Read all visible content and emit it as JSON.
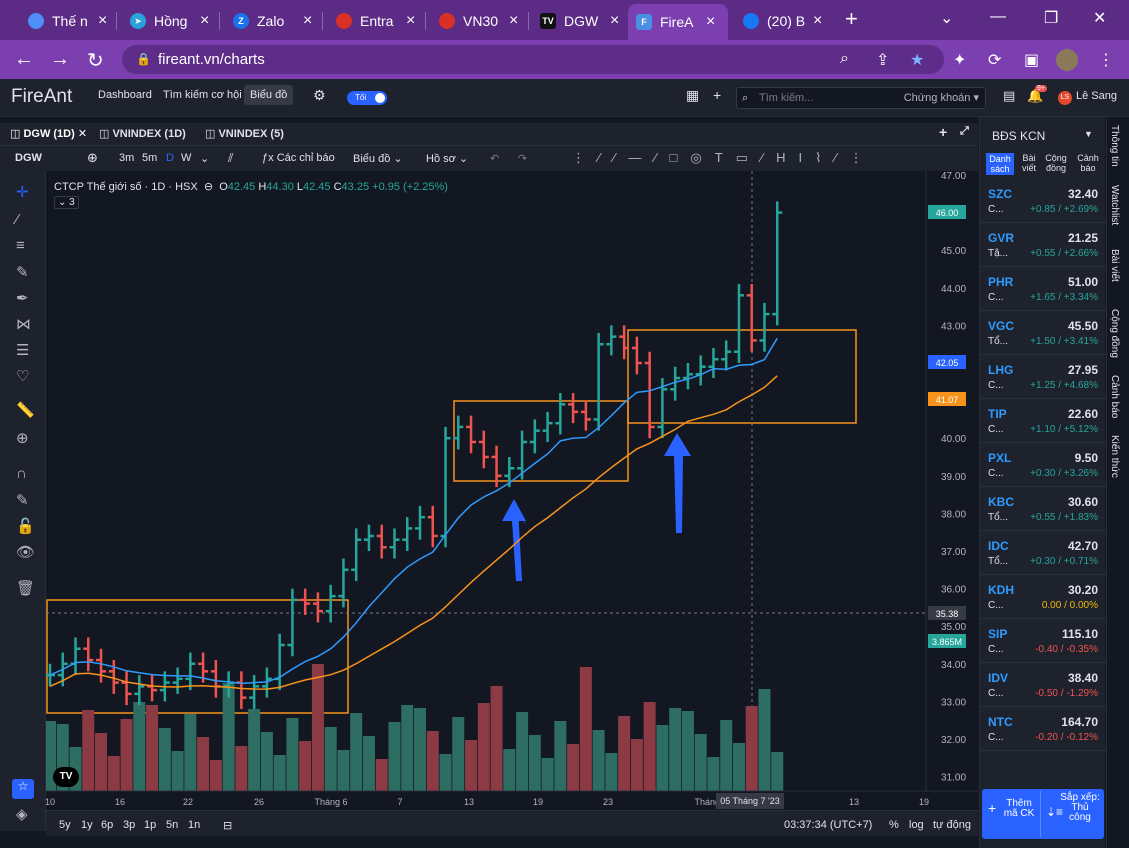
{
  "browser": {
    "tabs": [
      {
        "title": "Thế n",
        "color": "#4e8ef7"
      },
      {
        "title": "Hồng",
        "color": "#2aa1dd"
      },
      {
        "title": "Zalo",
        "color": "#1a73e8"
      },
      {
        "title": "Entra",
        "color": "#d93025"
      },
      {
        "title": "VN30",
        "color": "#d93025"
      },
      {
        "title": "DGW",
        "color": "#111111"
      },
      {
        "title": "FireA",
        "color": "#4a90e2"
      },
      {
        "title": "(20) B",
        "color": "#1877f2"
      }
    ],
    "url": "fireant.vn/charts"
  },
  "app": {
    "logo": "FireAnt",
    "menu": [
      "Dashboard",
      "Tìm kiếm cơ hội",
      "Biểu đồ"
    ],
    "toggle": "Tối",
    "search_placeholder": "Tìm kiếm...",
    "search_scope": "Chứng khoán",
    "notif_badge": "9+",
    "user_initials": "LS",
    "user_name": "Lê Sang"
  },
  "chart_tabs": [
    "DGW (1D)",
    "VNINDEX (1D)",
    "VNINDEX (5)"
  ],
  "toolbar": {
    "symbol": "DGW",
    "intervals": [
      "3m",
      "5m",
      "D",
      "W"
    ],
    "indicators": "Các chỉ báo",
    "chart_type": "Biểu đồ",
    "profile": "Hồ sơ"
  },
  "legend": {
    "title": "CTCP Thế giới số · 1D · HSX",
    "o": "42.45",
    "h": "44.30",
    "l": "42.45",
    "c": "43.25",
    "chg": "+0.95 (+2.25%)",
    "collapsed": "3"
  },
  "chart_data": {
    "type": "bar",
    "y_axis": [
      "47.00",
      "46.00",
      "45.00",
      "44.00",
      "43.00",
      "42.00",
      "41.00",
      "40.00",
      "39.00",
      "38.00",
      "37.00",
      "36.00",
      "35.00",
      "34.00",
      "33.00",
      "32.00",
      "31.00"
    ],
    "x_axis": [
      "10",
      "16",
      "22",
      "26",
      "Tháng 6",
      "7",
      "13",
      "19",
      "23",
      "Tháng 7",
      "13",
      "19"
    ],
    "price_labels": [
      {
        "text": "46.00",
        "color": "#26a69a"
      },
      {
        "text": "42.05",
        "color": "#2962ff"
      },
      {
        "text": "41.07",
        "color": "#f7931a"
      },
      {
        "text": "35.38",
        "color": "#363a45"
      },
      {
        "text": "3.865M",
        "color": "#26a69a"
      }
    ],
    "crosshair_date": "05 Tháng 7 '23"
  },
  "bottom": {
    "ranges": [
      "5y",
      "1y",
      "6p",
      "3p",
      "1p",
      "5n",
      "1n"
    ],
    "time": "03:37:34 (UTC+7)",
    "opts": [
      "%",
      "log",
      "tự động"
    ]
  },
  "watchlist": {
    "name": "BĐS KCN",
    "tabs": [
      "Danh sách",
      "Bài viết",
      "Cộng đồng",
      "Cảnh báo"
    ],
    "rows": [
      {
        "sym": "SZC",
        "name": "C...",
        "price": "32.40",
        "chg": "+0.85 / +2.69%",
        "color": "#26a69a"
      },
      {
        "sym": "GVR",
        "name": "Tậ...",
        "price": "21.25",
        "chg": "+0.55 / +2.66%",
        "color": "#26a69a"
      },
      {
        "sym": "PHR",
        "name": "C...",
        "price": "51.00",
        "chg": "+1.65 / +3.34%",
        "color": "#26a69a"
      },
      {
        "sym": "VGC",
        "name": "Tổ...",
        "price": "45.50",
        "chg": "+1.50 / +3.41%",
        "color": "#26a69a"
      },
      {
        "sym": "LHG",
        "name": "C...",
        "price": "27.95",
        "chg": "+1.25 / +4.68%",
        "color": "#26a69a"
      },
      {
        "sym": "TIP",
        "name": "C...",
        "price": "22.60",
        "chg": "+1.10 / +5.12%",
        "color": "#26a69a"
      },
      {
        "sym": "PXL",
        "name": "C...",
        "price": "9.50",
        "chg": "+0.30 / +3.26%",
        "color": "#26a69a"
      },
      {
        "sym": "KBC",
        "name": "Tổ...",
        "price": "30.60",
        "chg": "+0.55 / +1.83%",
        "color": "#26a69a"
      },
      {
        "sym": "IDC",
        "name": "Tổ...",
        "price": "42.70",
        "chg": "+0.30 / +0.71%",
        "color": "#26a69a"
      },
      {
        "sym": "KDH",
        "name": "C...",
        "price": "30.20",
        "chg": "0.00 / 0.00%",
        "color": "#f0b90b"
      },
      {
        "sym": "SIP",
        "name": "C...",
        "price": "115.10",
        "chg": "-0.40 / -0.35%",
        "color": "#ef5350"
      },
      {
        "sym": "IDV",
        "name": "C...",
        "price": "38.40",
        "chg": "-0.50 / -1.29%",
        "color": "#ef5350"
      },
      {
        "sym": "NTC",
        "name": "C...",
        "price": "164.70",
        "chg": "-0.20 / -0.12%",
        "color": "#ef5350"
      }
    ],
    "add_btn": "Thêm mã CK",
    "sort_btn": "Sắp xếp: Thủ công"
  },
  "sidebar": [
    "Thông tin",
    "Watchlist",
    "Bài viết",
    "Cộng đồng",
    "Cảnh báo",
    "Kiến thức"
  ]
}
